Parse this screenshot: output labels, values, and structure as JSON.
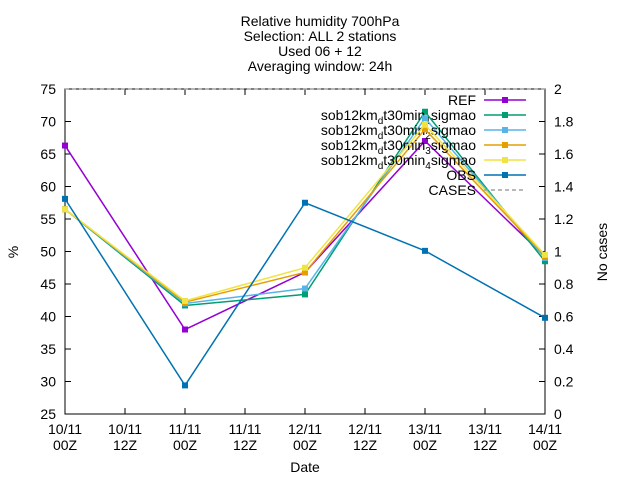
{
  "chart_data": {
    "type": "line",
    "title": [
      "Relative humidity 700hPa",
      "Selection: ALL      2 stations",
      "Used 06 + 12",
      "Averaging window: 24h"
    ],
    "xlabel": "Date",
    "ylabel": "%",
    "y2label": "No cases",
    "x": [
      0,
      24,
      48,
      72,
      96
    ],
    "xlim": [
      0,
      96
    ],
    "xticks": [
      {
        "value": 0,
        "label": "10/11\n00Z"
      },
      {
        "value": 12,
        "label": "10/11\n12Z"
      },
      {
        "value": 24,
        "label": "11/11\n00Z"
      },
      {
        "value": 36,
        "label": "11/11\n12Z"
      },
      {
        "value": 48,
        "label": "12/11\n00Z"
      },
      {
        "value": 60,
        "label": "12/11\n12Z"
      },
      {
        "value": 72,
        "label": "13/11\n00Z"
      },
      {
        "value": 84,
        "label": "13/11\n12Z"
      },
      {
        "value": 96,
        "label": "14/11\n00Z"
      }
    ],
    "ylim": [
      25,
      75
    ],
    "yticks": [
      25,
      30,
      35,
      40,
      45,
      50,
      55,
      60,
      65,
      70,
      75
    ],
    "y2lim": [
      0,
      2
    ],
    "y2ticks": [
      0,
      0.2,
      0.4,
      0.6,
      0.8,
      1,
      1.2,
      1.4,
      1.6,
      1.8,
      2
    ],
    "legend": "top-right",
    "series": [
      {
        "name": "REF",
        "color": "#9400d3",
        "values": [
          66.3,
          38,
          46.8,
          67,
          49.2
        ]
      },
      {
        "name": "sob12km_dt30min_1sigmao",
        "color": "#009e73",
        "values": [
          56.5,
          41.7,
          43.4,
          71.5,
          48.5
        ]
      },
      {
        "name": "sob12km_dt30min_2sigmao",
        "color": "#56b4e9",
        "values": [
          56.5,
          42,
          44.3,
          70.5,
          49
        ]
      },
      {
        "name": "sob12km_dt30min_3sigmao",
        "color": "#e69f00",
        "values": [
          56.5,
          42.2,
          46.8,
          68.8,
          49.3
        ]
      },
      {
        "name": "sob12km_dt30min_4sigmao",
        "color": "#f0e442",
        "values": [
          56.5,
          42.4,
          47.5,
          69.5,
          49.5
        ]
      },
      {
        "name": "OBS",
        "color": "#0072b2",
        "values": [
          58.1,
          29.4,
          57.5,
          50.1,
          39.8
        ]
      },
      {
        "name": "CASES",
        "color": "#a0a0a0",
        "dash": true,
        "axis": "y2",
        "values": [
          2,
          2,
          2,
          2,
          2
        ]
      }
    ]
  }
}
